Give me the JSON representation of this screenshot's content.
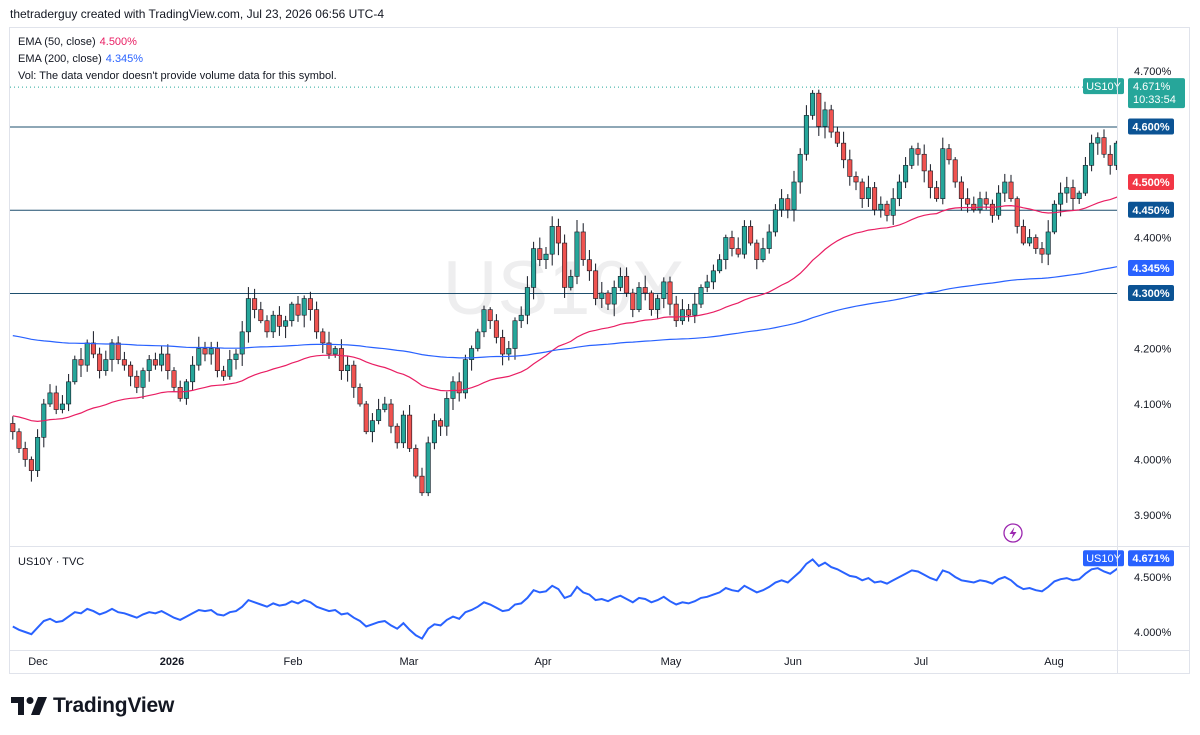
{
  "header": {
    "attribution": "thetraderguy created with TradingView.com, Jul 23, 2026 06:56 UTC-4"
  },
  "legend": {
    "ema50": {
      "label": "EMA (50, close)",
      "value": "4.500%"
    },
    "ema200": {
      "label": "EMA (200, close)",
      "value": "4.345%"
    },
    "vol": "Vol: The data vendor doesn't provide volume data for this symbol."
  },
  "watermark": "US10Y",
  "bottom_pane": {
    "label": "US10Y · TVC"
  },
  "brand": {
    "name": "TradingView"
  },
  "colors": {
    "up": "#26a69a",
    "down": "#ef5350",
    "ema50": "#e91e63",
    "ema200": "#2962ff",
    "level_line": "#1e4f6e",
    "line_series": "#2962ff",
    "price_label": "#26a69a",
    "ema50_label": "#f23645",
    "ema200_label": "#2962ff",
    "level_label": "#0b5394"
  },
  "chart_data": [
    {
      "type": "candlestick",
      "symbol": "US10Y",
      "ylim": [
        3.87,
        4.72
      ],
      "y_ticks": [
        "4.700%",
        "4.600%",
        "4.500%",
        "4.450%",
        "4.400%",
        "4.345%",
        "4.300%",
        "4.200%",
        "4.100%",
        "4.000%",
        "3.900%"
      ],
      "x_ticks": [
        "Dec",
        "2026",
        "Feb",
        "Mar",
        "Apr",
        "May",
        "Jun",
        "Jul",
        "Aug"
      ],
      "last_price": "4.671%",
      "countdown": "10:33:54",
      "horizontal_levels": [
        {
          "value": 4.6,
          "label": "4.600%"
        },
        {
          "value": 4.45,
          "label": "4.450%"
        },
        {
          "value": 4.3,
          "label": "4.300%"
        }
      ],
      "ema50_tag": "4.500%",
      "ema200_tag": "4.345%",
      "closes": [
        4.05,
        4.02,
        4.0,
        3.98,
        4.04,
        4.1,
        4.12,
        4.09,
        4.1,
        4.14,
        4.18,
        4.17,
        4.21,
        4.19,
        4.16,
        4.18,
        4.21,
        4.18,
        4.17,
        4.15,
        4.13,
        4.16,
        4.18,
        4.17,
        4.19,
        4.16,
        4.13,
        4.11,
        4.14,
        4.17,
        4.2,
        4.19,
        4.2,
        4.16,
        4.15,
        4.18,
        4.19,
        4.23,
        4.29,
        4.27,
        4.25,
        4.23,
        4.26,
        4.24,
        4.25,
        4.28,
        4.26,
        4.29,
        4.27,
        4.23,
        4.21,
        4.19,
        4.2,
        4.16,
        4.17,
        4.13,
        4.1,
        4.05,
        4.07,
        4.09,
        4.1,
        4.06,
        4.03,
        4.08,
        4.02,
        3.97,
        3.94,
        4.03,
        4.07,
        4.06,
        4.11,
        4.14,
        4.12,
        4.18,
        4.2,
        4.23,
        4.27,
        4.25,
        4.22,
        4.19,
        4.2,
        4.25,
        4.26,
        4.31,
        4.38,
        4.36,
        4.37,
        4.42,
        4.39,
        4.31,
        4.33,
        4.41,
        4.36,
        4.34,
        4.29,
        4.3,
        4.28,
        4.31,
        4.33,
        4.3,
        4.27,
        4.31,
        4.3,
        4.27,
        4.29,
        4.32,
        4.28,
        4.25,
        4.27,
        4.26,
        4.28,
        4.31,
        4.32,
        4.34,
        4.36,
        4.4,
        4.38,
        4.37,
        4.42,
        4.39,
        4.36,
        4.38,
        4.41,
        4.45,
        4.47,
        4.45,
        4.5,
        4.55,
        4.62,
        4.66,
        4.6,
        4.63,
        4.59,
        4.57,
        4.54,
        4.51,
        4.5,
        4.47,
        4.49,
        4.45,
        4.46,
        4.44,
        4.47,
        4.5,
        4.53,
        4.56,
        4.55,
        4.52,
        4.49,
        4.47,
        4.56,
        4.54,
        4.5,
        4.47,
        4.46,
        4.45,
        4.47,
        4.46,
        4.44,
        4.48,
        4.5,
        4.47,
        4.42,
        4.39,
        4.4,
        4.38,
        4.37,
        4.41,
        4.46,
        4.48,
        4.49,
        4.47,
        4.48,
        4.53,
        4.57,
        4.58,
        4.55,
        4.53,
        4.57,
        4.61,
        4.58,
        4.55,
        4.54,
        4.56,
        4.55,
        4.59,
        4.61,
        4.64,
        4.65,
        4.671
      ]
    },
    {
      "type": "line",
      "series": "US10Y · TVC",
      "ylim": [
        3.5,
        5.05
      ],
      "y_ticks": [
        "4.671%",
        "4.500%",
        "4.000%"
      ],
      "last_label": "4.671%"
    }
  ]
}
